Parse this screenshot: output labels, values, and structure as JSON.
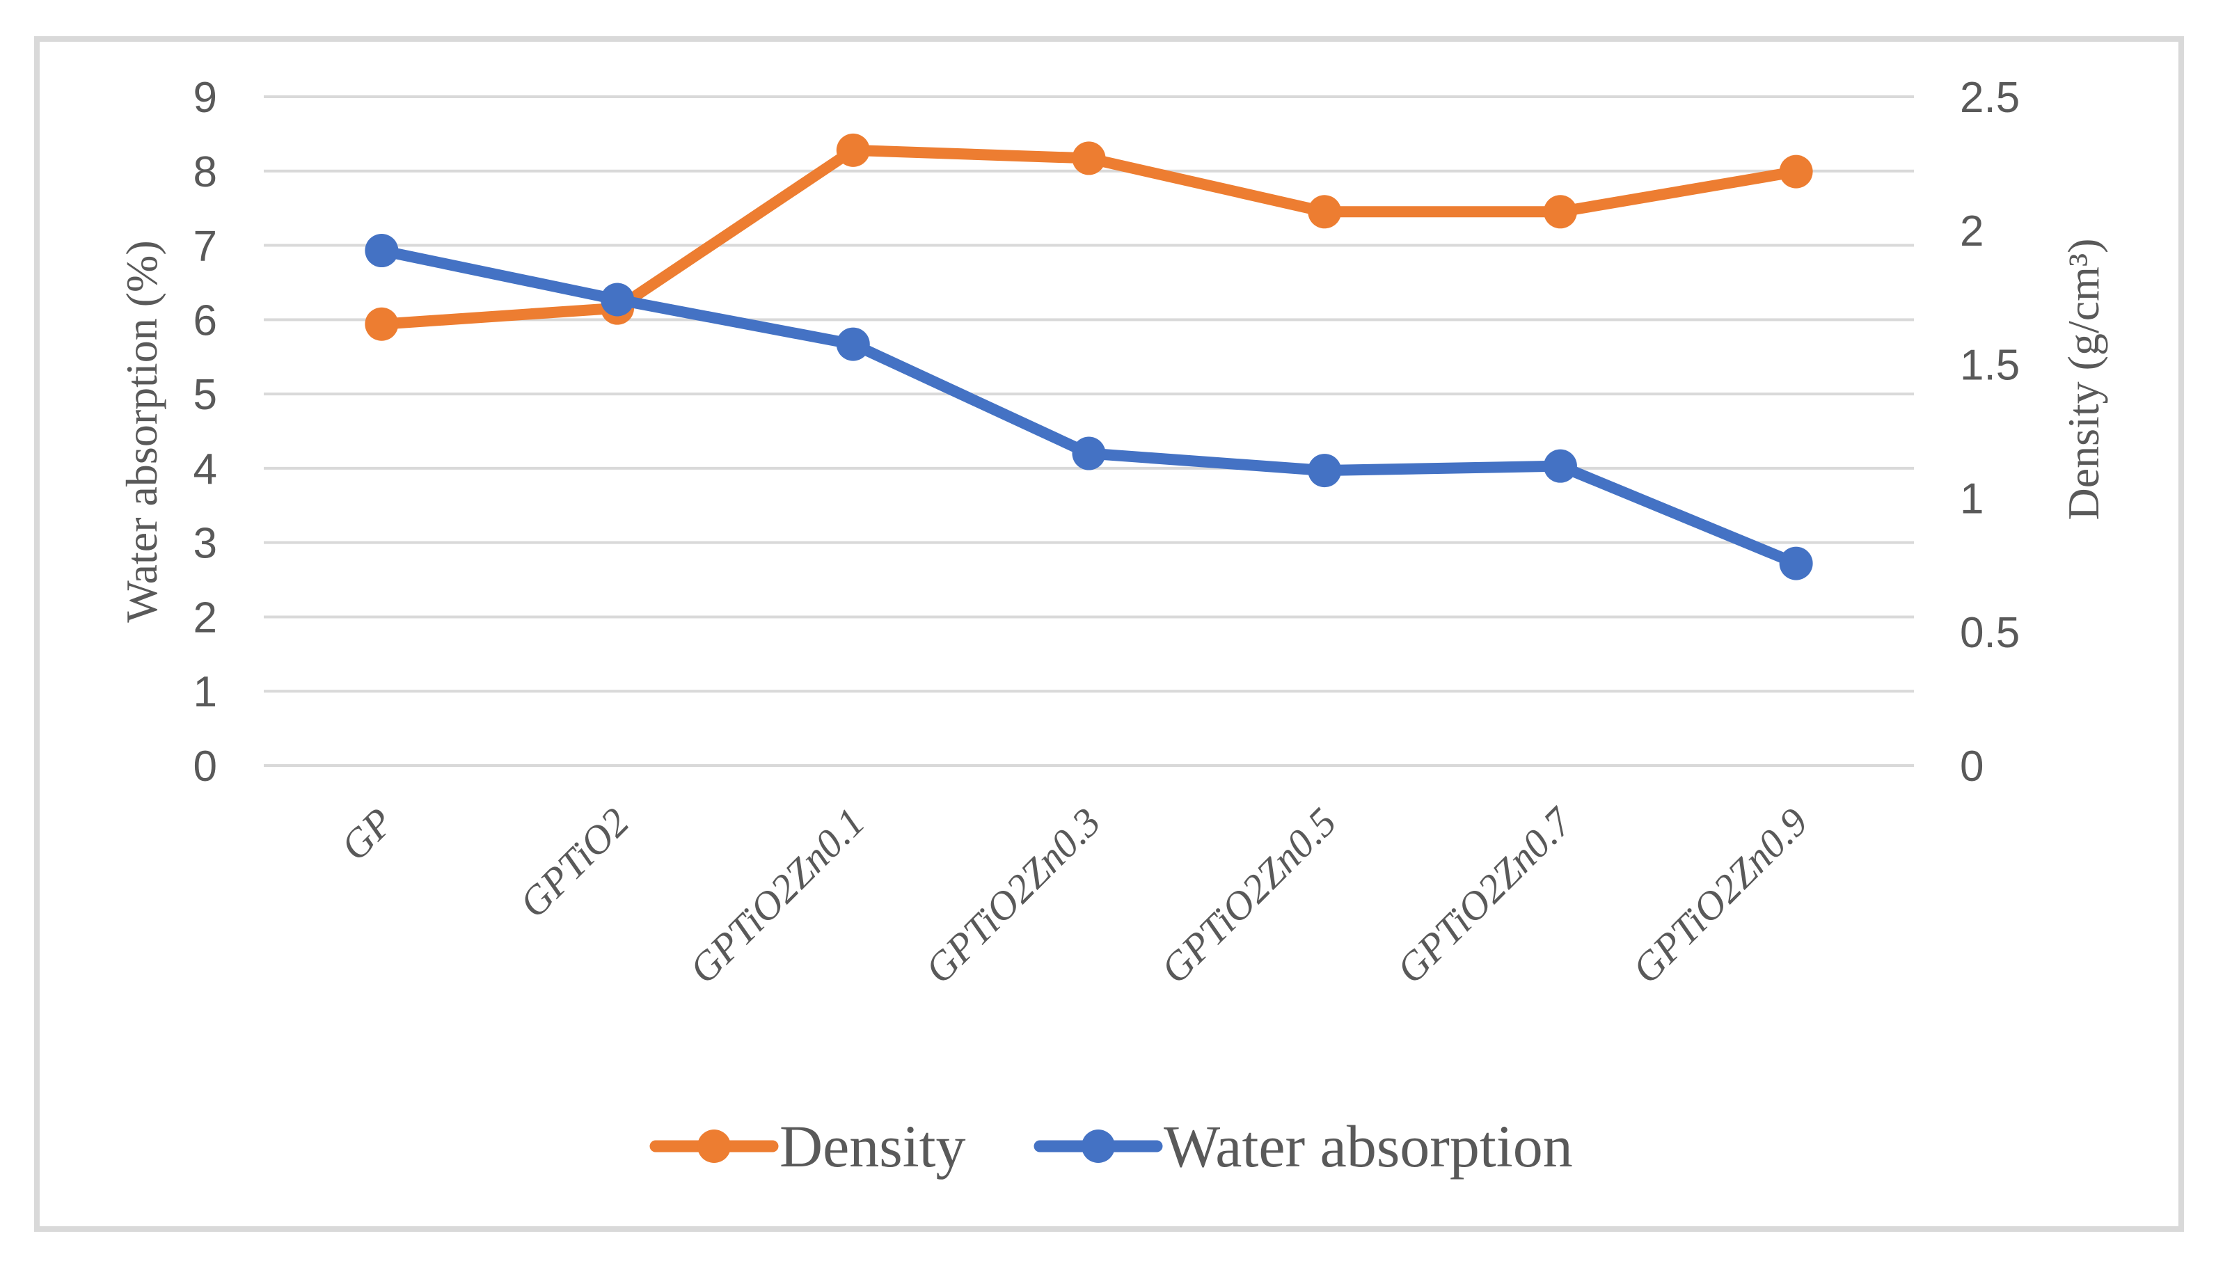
{
  "figure": {
    "background": "#ffffff",
    "border_color": "#d9d9d9",
    "text_color": "#595959",
    "gridline_color": "#d9d9d9"
  },
  "chart_data": {
    "type": "line",
    "categories": [
      "GP",
      "GPTiO2",
      "GPTiO2Zn0.1",
      "GPTiO2Zn0.3",
      "GPTiO2Zn0.5",
      "GPTiO2Zn0.7",
      "GPTiO2Zn0.9"
    ],
    "series": [
      {
        "name": "Density",
        "axis": "right",
        "color": "#ED7D31",
        "values": [
          1.65,
          1.71,
          2.3,
          2.27,
          2.07,
          2.07,
          2.22
        ]
      },
      {
        "name": "Water absorption",
        "axis": "left",
        "color": "#4472C4",
        "values": [
          6.93,
          6.27,
          5.67,
          4.2,
          3.97,
          4.03,
          2.72
        ]
      }
    ],
    "left_axis": {
      "label": "Water absorption (%)",
      "min": 0,
      "max": 9,
      "step": 1,
      "ticks": [
        "0",
        "1",
        "2",
        "3",
        "4",
        "5",
        "6",
        "7",
        "8",
        "9"
      ]
    },
    "right_axis": {
      "label": "Density (g/cm³)",
      "min": 0,
      "max": 2.5,
      "step": 0.5,
      "ticks": [
        "0",
        "0.5",
        "1",
        "1.5",
        "2",
        "2.5"
      ]
    },
    "grid": true,
    "legend_position": "bottom"
  },
  "legend": {
    "items": [
      {
        "label": "Density",
        "color": "#ED7D31"
      },
      {
        "label": "Water absorption",
        "color": "#4472C4"
      }
    ]
  }
}
